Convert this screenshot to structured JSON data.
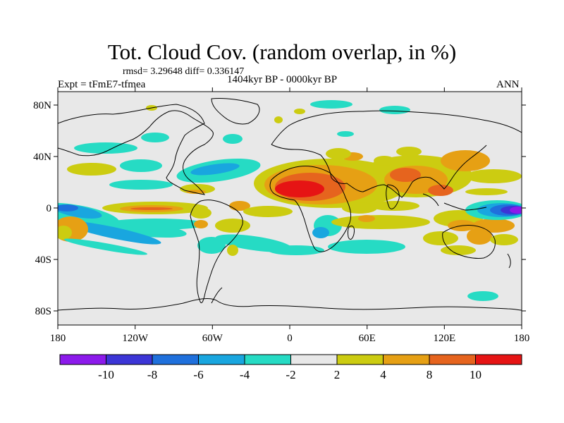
{
  "figure": {
    "title": "Tot. Cloud Cov. (random overlap, in %)",
    "stats": "rmsd= 3.29648  diff= 0.336147",
    "experiment": "Expt = tFmE7-tfmea",
    "period": "1404kyr BP - 0000kyr BP",
    "season": "ANN"
  },
  "axes": {
    "lon_ticks": [
      "180",
      "120W",
      "60W",
      "0",
      "60E",
      "120E",
      "180"
    ],
    "lat_ticks": [
      "80N",
      "40N",
      "0",
      "40S",
      "80S"
    ]
  },
  "colorbar": {
    "labels": [
      "-10",
      "-8",
      "-6",
      "-4",
      "-2",
      "2",
      "4",
      "8",
      "10"
    ],
    "colors": [
      "#8c1aeb",
      "#3c35d6",
      "#1f70dc",
      "#19a6df",
      "#26dbc4",
      "#e8e8e8",
      "#cccc11",
      "#e6a014",
      "#e6641e",
      "#e61414"
    ]
  },
  "colors": {
    "background_field": "#e8e8e8",
    "coastline": "#000000"
  }
}
